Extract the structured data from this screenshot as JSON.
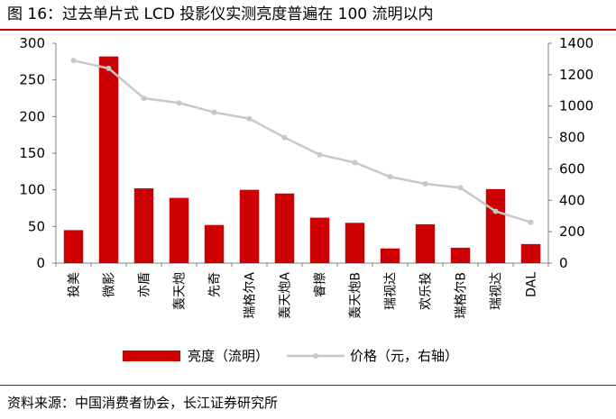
{
  "title": "图 16：过去单片式 LCD 投影仪实测亮度普遍在 100 流明以内",
  "source": "资料来源：中国消费者协会，长江证券研究所",
  "colors": {
    "bar": "#cc0000",
    "line": "#c8c8c8",
    "rule": "#c00000"
  },
  "chart_data": {
    "type": "bar",
    "categories": [
      "投美",
      "微影",
      "亦盾",
      "轰天炮",
      "先奇",
      "瑞格尔A",
      "轰天炮A",
      "睿擦",
      "轰天炮B",
      "瑞视达",
      "欢乐投",
      "瑞格尔B",
      "瑞视达",
      "DAL"
    ],
    "series": [
      {
        "name": "亮度（流明）",
        "type": "bar",
        "axis": "left",
        "values": [
          45,
          282,
          102,
          89,
          52,
          100,
          95,
          62,
          55,
          20,
          53,
          21,
          101,
          26
        ]
      },
      {
        "name": "价格（元，右轴）",
        "type": "line",
        "axis": "right",
        "values": [
          1290,
          1240,
          1050,
          1020,
          960,
          920,
          800,
          690,
          640,
          550,
          505,
          480,
          330,
          260
        ]
      }
    ],
    "ylim": [
      0,
      300
    ],
    "yticks": [
      0,
      50,
      100,
      150,
      200,
      250,
      300
    ],
    "y2lim": [
      0,
      1400
    ],
    "y2ticks": [
      0,
      200,
      400,
      600,
      800,
      1000,
      1200,
      1400
    ],
    "grid": false,
    "legend": "bottom"
  }
}
